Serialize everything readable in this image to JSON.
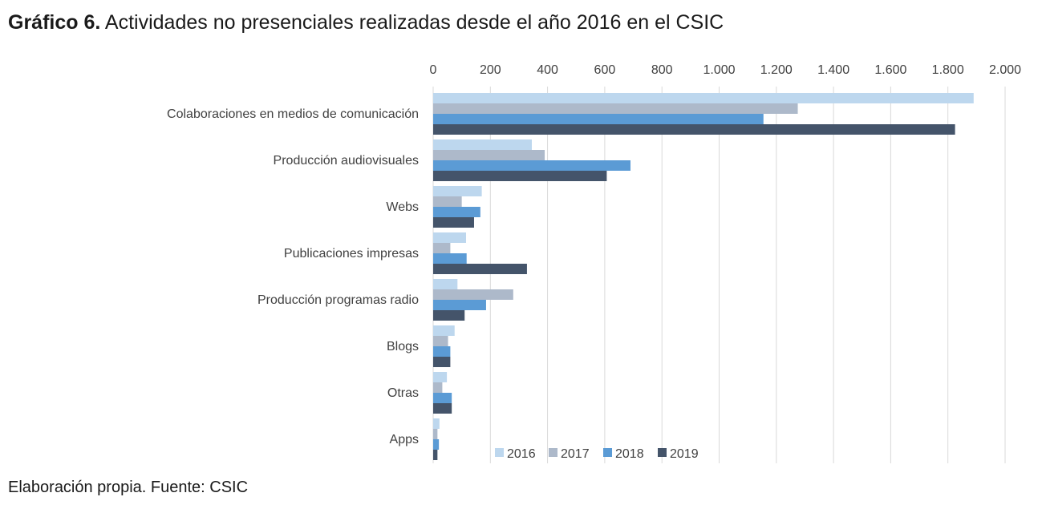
{
  "title_bold": "Gráfico 6.",
  "title_rest": "Actividades no presenciales realizadas desde el año 2016 en el CSIC",
  "footer": "Elaboración propia. Fuente: CSIC",
  "chart_data": {
    "type": "bar",
    "orientation": "horizontal",
    "categories": [
      "Colaboraciones en medios de comunicación",
      "Producción audiovisuales",
      "Webs",
      "Publicaciones impresas",
      "Producción programas radio",
      "Blogs",
      "Otras",
      "Apps"
    ],
    "series": [
      {
        "name": "2016",
        "color": "#bdd7ee",
        "values": [
          1890,
          345,
          170,
          115,
          85,
          75,
          48,
          22
        ]
      },
      {
        "name": "2017",
        "color": "#adb9ca",
        "values": [
          1275,
          390,
          100,
          60,
          280,
          52,
          32,
          15
        ]
      },
      {
        "name": "2018",
        "color": "#5b9bd5",
        "values": [
          1155,
          690,
          165,
          117,
          185,
          60,
          65,
          20
        ]
      },
      {
        "name": "2019",
        "color": "#44546a",
        "values": [
          1825,
          607,
          143,
          328,
          110,
          60,
          65,
          15
        ]
      }
    ],
    "xlim": [
      0,
      2000
    ],
    "xticks": [
      0,
      200,
      400,
      600,
      800,
      1000,
      1200,
      1400,
      1600,
      1800,
      2000
    ],
    "xtick_labels": [
      "0",
      "200",
      "400",
      "600",
      "800",
      "1.000",
      "1.200",
      "1.400",
      "1.600",
      "1.800",
      "2.000"
    ],
    "axis_position": "top",
    "grid": "vertical",
    "legend_position": "bottom-inside"
  }
}
